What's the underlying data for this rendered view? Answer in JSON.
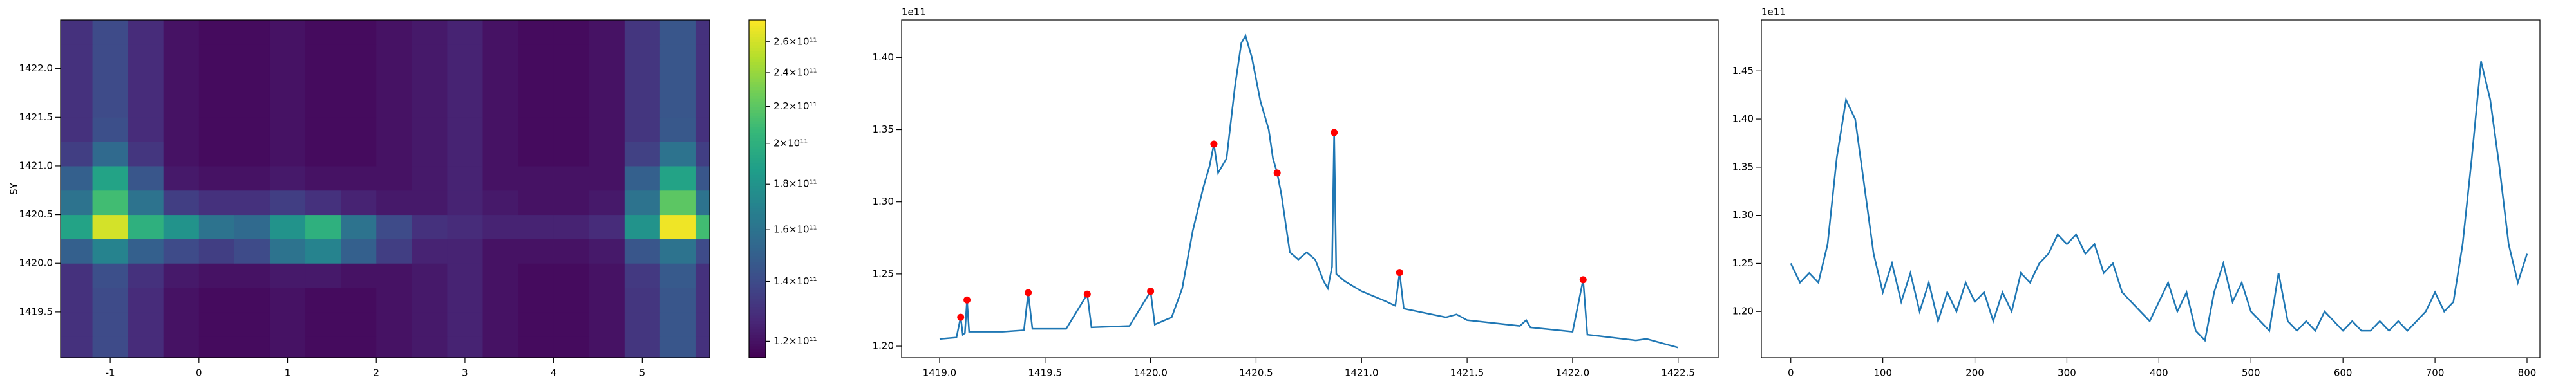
{
  "chart_data": [
    {
      "type": "heatmap",
      "ylabel": "SY",
      "x": [
        -1.4,
        -1.0,
        -0.6,
        -0.2,
        0.2,
        0.6,
        1.0,
        1.4,
        1.8,
        2.2,
        2.6,
        3.0,
        3.4,
        3.8,
        4.2,
        4.6,
        5.0,
        5.4,
        5.8
      ],
      "y": [
        1419.125,
        1419.375,
        1419.625,
        1419.875,
        1420.125,
        1420.375,
        1420.625,
        1420.875,
        1421.125,
        1421.375,
        1421.625,
        1421.875,
        1422.125,
        1422.375
      ],
      "z": [
        [
          130000000000.0,
          140000000000.0,
          128000000000.0,
          120000000000.0,
          118000000000.0,
          118000000000.0,
          120000000000.0,
          118000000000.0,
          118000000000.0,
          120000000000.0,
          122000000000.0,
          125000000000.0,
          120000000000.0,
          118000000000.0,
          118000000000.0,
          120000000000.0,
          132000000000.0,
          145000000000.0,
          130000000000.0
        ],
        [
          130000000000.0,
          140000000000.0,
          128000000000.0,
          120000000000.0,
          118000000000.0,
          118000000000.0,
          120000000000.0,
          118000000000.0,
          118000000000.0,
          120000000000.0,
          122000000000.0,
          125000000000.0,
          120000000000.0,
          118000000000.0,
          118000000000.0,
          120000000000.0,
          132000000000.0,
          145000000000.0,
          130000000000.0
        ],
        [
          130000000000.0,
          140000000000.0,
          128000000000.0,
          120000000000.0,
          118000000000.0,
          118000000000.0,
          120000000000.0,
          118000000000.0,
          118000000000.0,
          120000000000.0,
          122000000000.0,
          125000000000.0,
          120000000000.0,
          118000000000.0,
          118000000000.0,
          120000000000.0,
          132000000000.0,
          145000000000.0,
          130000000000.0
        ],
        [
          130000000000.0,
          142000000000.0,
          130000000000.0,
          122000000000.0,
          120000000000.0,
          120000000000.0,
          122000000000.0,
          122000000000.0,
          120000000000.0,
          120000000000.0,
          122000000000.0,
          125000000000.0,
          120000000000.0,
          118000000000.0,
          118000000000.0,
          120000000000.0,
          133000000000.0,
          147000000000.0,
          130000000000.0
        ],
        [
          150000000000.0,
          170000000000.0,
          150000000000.0,
          140000000000.0,
          135000000000.0,
          140000000000.0,
          160000000000.0,
          170000000000.0,
          150000000000.0,
          135000000000.0,
          125000000000.0,
          125000000000.0,
          120000000000.0,
          120000000000.0,
          120000000000.0,
          122000000000.0,
          145000000000.0,
          160000000000.0,
          140000000000.0
        ],
        [
          190000000000.0,
          260000000000.0,
          200000000000.0,
          180000000000.0,
          160000000000.0,
          155000000000.0,
          180000000000.0,
          200000000000.0,
          160000000000.0,
          140000000000.0,
          130000000000.0,
          128000000000.0,
          125000000000.0,
          125000000000.0,
          125000000000.0,
          128000000000.0,
          180000000000.0,
          270000000000.0,
          210000000000.0
        ],
        [
          160000000000.0,
          210000000000.0,
          160000000000.0,
          135000000000.0,
          130000000000.0,
          130000000000.0,
          135000000000.0,
          130000000000.0,
          125000000000.0,
          122000000000.0,
          122000000000.0,
          125000000000.0,
          122000000000.0,
          120000000000.0,
          120000000000.0,
          122000000000.0,
          160000000000.0,
          220000000000.0,
          160000000000.0
        ],
        [
          150000000000.0,
          190000000000.0,
          145000000000.0,
          122000000000.0,
          120000000000.0,
          120000000000.0,
          122000000000.0,
          120000000000.0,
          120000000000.0,
          120000000000.0,
          122000000000.0,
          125000000000.0,
          120000000000.0,
          120000000000.0,
          120000000000.0,
          120000000000.0,
          150000000000.0,
          190000000000.0,
          145000000000.0
        ],
        [
          135000000000.0,
          155000000000.0,
          132000000000.0,
          120000000000.0,
          118000000000.0,
          118000000000.0,
          120000000000.0,
          118000000000.0,
          118000000000.0,
          120000000000.0,
          122000000000.0,
          125000000000.0,
          120000000000.0,
          118000000000.0,
          118000000000.0,
          120000000000.0,
          136000000000.0,
          160000000000.0,
          135000000000.0
        ],
        [
          130000000000.0,
          142000000000.0,
          128000000000.0,
          120000000000.0,
          118000000000.0,
          118000000000.0,
          120000000000.0,
          118000000000.0,
          118000000000.0,
          120000000000.0,
          122000000000.0,
          125000000000.0,
          120000000000.0,
          118000000000.0,
          118000000000.0,
          120000000000.0,
          132000000000.0,
          146000000000.0,
          130000000000.0
        ],
        [
          130000000000.0,
          140000000000.0,
          128000000000.0,
          120000000000.0,
          118000000000.0,
          118000000000.0,
          120000000000.0,
          118000000000.0,
          118000000000.0,
          120000000000.0,
          122000000000.0,
          125000000000.0,
          120000000000.0,
          118000000000.0,
          118000000000.0,
          120000000000.0,
          132000000000.0,
          145000000000.0,
          130000000000.0
        ],
        [
          130000000000.0,
          140000000000.0,
          128000000000.0,
          120000000000.0,
          118000000000.0,
          118000000000.0,
          120000000000.0,
          118000000000.0,
          118000000000.0,
          120000000000.0,
          122000000000.0,
          125000000000.0,
          120000000000.0,
          118000000000.0,
          118000000000.0,
          120000000000.0,
          132000000000.0,
          145000000000.0,
          130000000000.0
        ],
        [
          130000000000.0,
          140000000000.0,
          128000000000.0,
          120000000000.0,
          118000000000.0,
          118000000000.0,
          120000000000.0,
          118000000000.0,
          118000000000.0,
          120000000000.0,
          122000000000.0,
          125000000000.0,
          120000000000.0,
          118000000000.0,
          118000000000.0,
          120000000000.0,
          132000000000.0,
          145000000000.0,
          130000000000.0
        ],
        [
          130000000000.0,
          140000000000.0,
          128000000000.0,
          120000000000.0,
          118000000000.0,
          118000000000.0,
          120000000000.0,
          118000000000.0,
          118000000000.0,
          120000000000.0,
          122000000000.0,
          125000000000.0,
          120000000000.0,
          118000000000.0,
          118000000000.0,
          120000000000.0,
          132000000000.0,
          145000000000.0,
          130000000000.0
        ]
      ],
      "xlim": [
        -1.56,
        5.76
      ],
      "ylim": [
        1419.03,
        1422.5
      ],
      "xticks": [
        -1,
        0,
        1,
        2,
        3,
        4,
        5
      ],
      "yticks": [
        {
          "value": 1419.5,
          "label": "1419.5"
        },
        {
          "value": 1420,
          "label": "1420.0"
        },
        1420.5,
        {
          "value": 1421,
          "label": "1421.0"
        },
        1421.5,
        {
          "value": 1422,
          "label": "1422.0"
        }
      ],
      "colorbar": {
        "log": true,
        "lim": [
          115000000000.0,
          275000000000.0
        ],
        "ticks": [
          {
            "value": 120000000000.0,
            "label": "1.2×10¹¹"
          },
          {
            "value": 140000000000.0,
            "label": "1.4×10¹¹"
          },
          {
            "value": 160000000000.0,
            "label": "1.6×10¹¹"
          },
          {
            "value": 180000000000.0,
            "label": "1.8×10¹¹"
          },
          {
            "value": 200000000000.0,
            "label": "2×10¹¹"
          },
          {
            "value": 220000000000.0,
            "label": "2.2×10¹¹"
          },
          {
            "value": 240000000000.0,
            "label": "2.4×10¹¹"
          },
          {
            "value": 260000000000.0,
            "label": "2.6×10¹¹"
          }
        ]
      }
    },
    {
      "type": "line",
      "offset_text": "1e11",
      "xlim": [
        1418.82,
        1422.69
      ],
      "ylim": [
        1.192,
        1.426
      ],
      "xticks": [
        {
          "value": 1419,
          "label": "1419.0"
        },
        1419.5,
        {
          "value": 1420,
          "label": "1420.0"
        },
        1420.5,
        {
          "value": 1421,
          "label": "1421.0"
        },
        1421.5,
        {
          "value": 1422,
          "label": "1422.0"
        },
        1422.5
      ],
      "yticks": [
        {
          "value": 1.2,
          "label": "1.20"
        },
        1.25,
        {
          "value": 1.3,
          "label": "1.30"
        },
        1.35,
        {
          "value": 1.4,
          "label": "1.40"
        }
      ],
      "series": [
        {
          "type": "line",
          "color": "#1f77b4",
          "x": [
            1419.0,
            1419.08,
            1419.1,
            1419.11,
            1419.12,
            1419.13,
            1419.14,
            1419.3,
            1419.4,
            1419.42,
            1419.44,
            1419.6,
            1419.7,
            1419.72,
            1419.9,
            1420.0,
            1420.02,
            1420.1,
            1420.15,
            1420.2,
            1420.25,
            1420.28,
            1420.3,
            1420.32,
            1420.36,
            1420.4,
            1420.43,
            1420.45,
            1420.48,
            1420.52,
            1420.56,
            1420.58,
            1420.6,
            1420.62,
            1420.66,
            1420.7,
            1420.74,
            1420.78,
            1420.82,
            1420.84,
            1420.86,
            1420.87,
            1420.88,
            1420.92,
            1421.0,
            1421.1,
            1421.16,
            1421.18,
            1421.2,
            1421.4,
            1421.45,
            1421.5,
            1421.75,
            1421.78,
            1421.8,
            1422.0,
            1422.05,
            1422.07,
            1422.3,
            1422.35,
            1422.5
          ],
          "values": [
            1.205,
            1.206,
            1.22,
            1.208,
            1.209,
            1.232,
            1.21,
            1.21,
            1.211,
            1.237,
            1.212,
            1.212,
            1.236,
            1.213,
            1.214,
            1.238,
            1.215,
            1.22,
            1.24,
            1.28,
            1.31,
            1.325,
            1.34,
            1.32,
            1.33,
            1.38,
            1.41,
            1.415,
            1.4,
            1.37,
            1.35,
            1.33,
            1.32,
            1.305,
            1.265,
            1.26,
            1.265,
            1.26,
            1.245,
            1.24,
            1.255,
            1.348,
            1.25,
            1.245,
            1.238,
            1.232,
            1.228,
            1.251,
            1.226,
            1.22,
            1.222,
            1.218,
            1.214,
            1.218,
            1.213,
            1.21,
            1.246,
            1.208,
            1.204,
            1.205,
            1.199
          ]
        },
        {
          "type": "scatter",
          "color": "#ff0000",
          "x": [
            1419.1,
            1419.13,
            1419.42,
            1419.7,
            1420.0,
            1420.3,
            1420.6,
            1420.87,
            1421.18,
            1422.05
          ],
          "values": [
            1.22,
            1.232,
            1.237,
            1.236,
            1.238,
            1.34,
            1.32,
            1.348,
            1.251,
            1.246
          ]
        }
      ]
    },
    {
      "type": "line",
      "offset_text": "1e11",
      "xlim": [
        -32,
        814
      ],
      "ylim": [
        1.152,
        1.503
      ],
      "xticks": [
        0,
        100,
        200,
        300,
        400,
        500,
        600,
        700,
        800
      ],
      "yticks": [
        {
          "value": 1.2,
          "label": "1.20"
        },
        1.25,
        {
          "value": 1.3,
          "label": "1.30"
        },
        1.35,
        {
          "value": 1.4,
          "label": "1.40"
        },
        1.45
      ],
      "series": [
        {
          "type": "line",
          "color": "#1f77b4",
          "x": [
            0,
            10,
            20,
            30,
            40,
            50,
            60,
            70,
            80,
            90,
            100,
            110,
            120,
            130,
            140,
            150,
            160,
            170,
            180,
            190,
            200,
            210,
            220,
            230,
            240,
            250,
            260,
            270,
            280,
            290,
            300,
            310,
            320,
            330,
            340,
            350,
            360,
            370,
            380,
            390,
            400,
            410,
            420,
            430,
            440,
            450,
            460,
            470,
            480,
            490,
            500,
            510,
            520,
            530,
            540,
            550,
            560,
            570,
            580,
            590,
            600,
            610,
            620,
            630,
            640,
            650,
            660,
            670,
            680,
            690,
            700,
            710,
            720,
            730,
            740,
            750,
            760,
            770,
            780,
            790,
            800
          ],
          "values": [
            1.25,
            1.23,
            1.24,
            1.23,
            1.27,
            1.36,
            1.42,
            1.4,
            1.33,
            1.26,
            1.22,
            1.25,
            1.21,
            1.24,
            1.2,
            1.23,
            1.19,
            1.22,
            1.2,
            1.23,
            1.21,
            1.22,
            1.19,
            1.22,
            1.2,
            1.24,
            1.23,
            1.25,
            1.26,
            1.28,
            1.27,
            1.28,
            1.26,
            1.27,
            1.24,
            1.25,
            1.22,
            1.21,
            1.2,
            1.19,
            1.21,
            1.23,
            1.2,
            1.22,
            1.18,
            1.17,
            1.22,
            1.25,
            1.21,
            1.23,
            1.2,
            1.19,
            1.18,
            1.24,
            1.19,
            1.18,
            1.19,
            1.18,
            1.2,
            1.19,
            1.18,
            1.19,
            1.18,
            1.18,
            1.19,
            1.18,
            1.19,
            1.18,
            1.19,
            1.2,
            1.22,
            1.2,
            1.21,
            1.27,
            1.36,
            1.46,
            1.42,
            1.35,
            1.27,
            1.23,
            1.26
          ]
        }
      ]
    }
  ]
}
